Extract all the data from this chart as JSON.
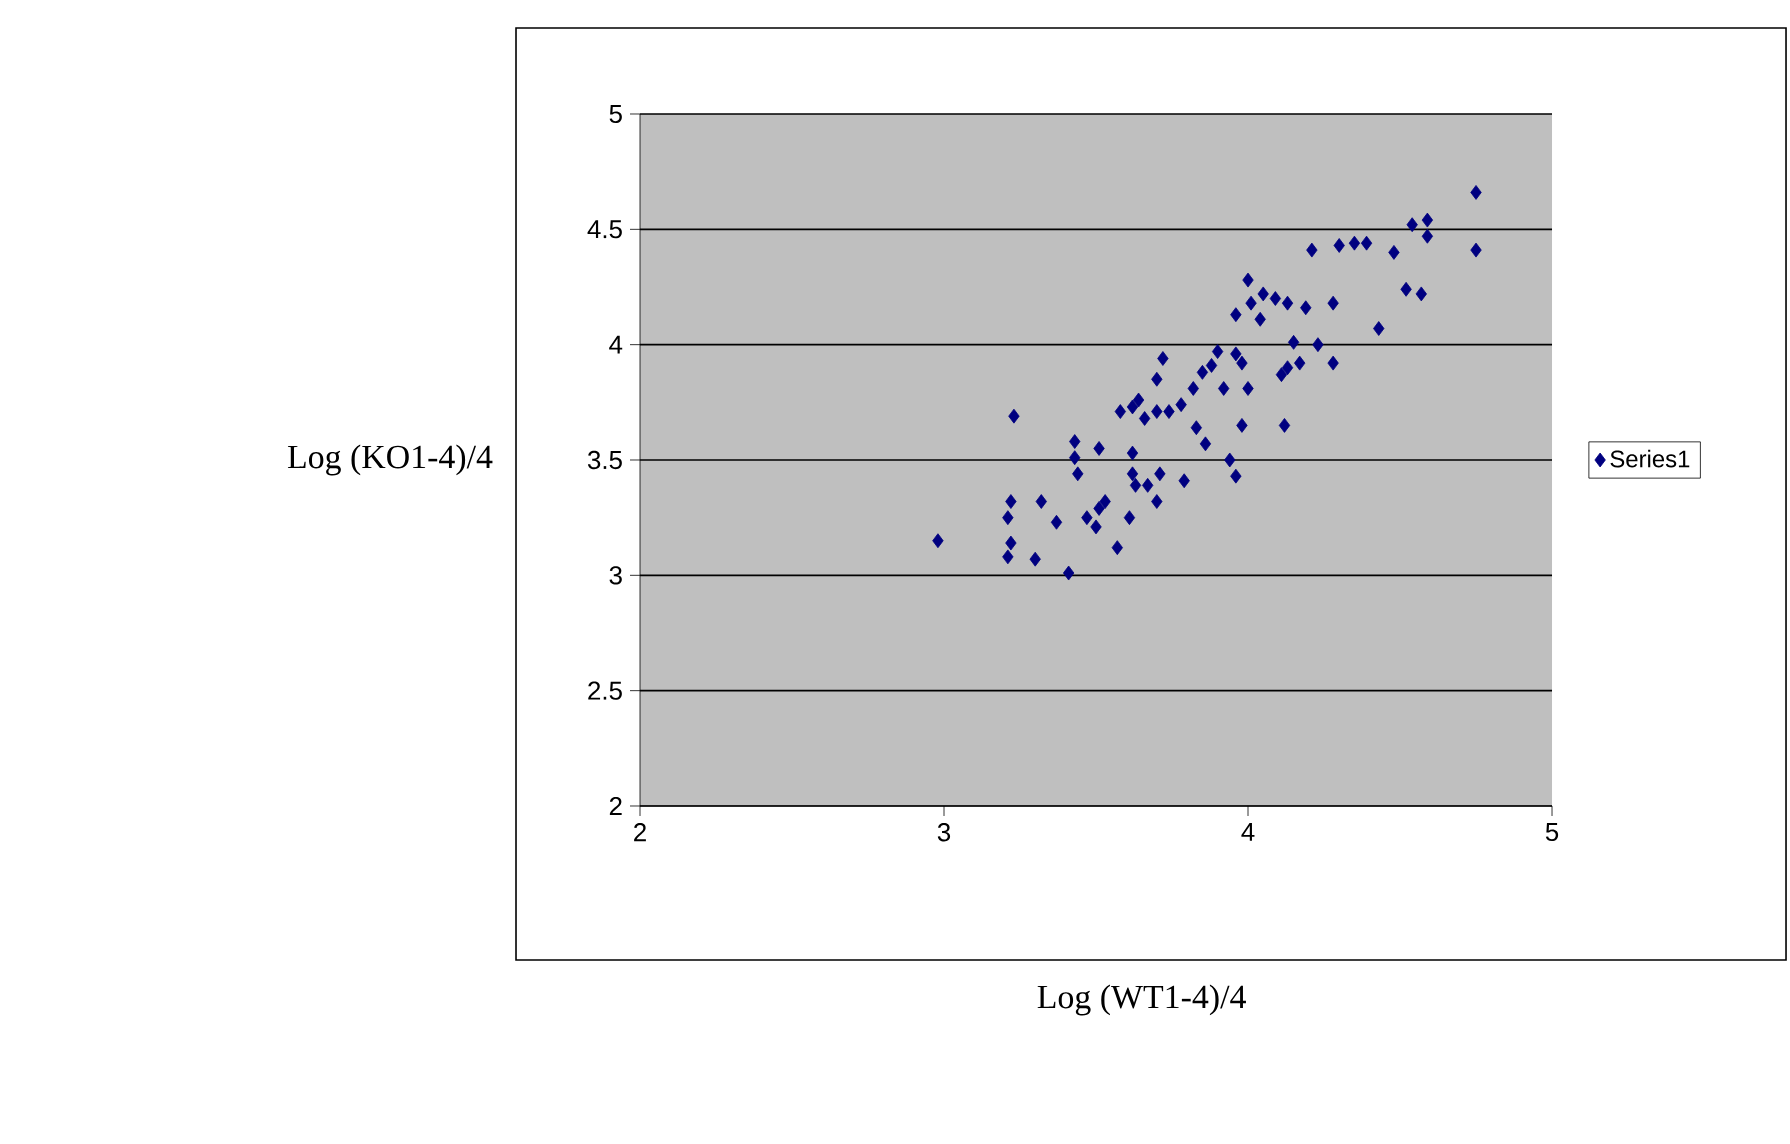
{
  "chart_data": {
    "type": "scatter",
    "xlabel": "Log (WT1-4)/4",
    "ylabel": "Log (KO1-4)/4",
    "xlim": [
      2,
      5
    ],
    "ylim": [
      2,
      5
    ],
    "xticks": [
      2,
      3,
      4,
      5
    ],
    "yticks": [
      2,
      2.5,
      3,
      3.5,
      4,
      4.5,
      5
    ],
    "grid": "y",
    "legend": "right",
    "marker": "diamond",
    "series": [
      {
        "name": "Series1",
        "color": "#000080",
        "x": [
          2.98,
          3.23,
          3.21,
          3.22,
          3.22,
          3.21,
          3.32,
          3.3,
          3.37,
          3.41,
          3.43,
          3.44,
          3.43,
          3.51,
          3.47,
          3.51,
          3.53,
          3.5,
          3.57,
          3.61,
          3.62,
          3.62,
          3.63,
          3.58,
          3.62,
          3.66,
          3.7,
          3.64,
          3.7,
          3.72,
          3.67,
          3.7,
          3.71,
          3.79,
          3.74,
          3.78,
          3.82,
          3.85,
          3.88,
          3.9,
          3.83,
          3.86,
          3.94,
          3.96,
          3.92,
          3.96,
          3.98,
          3.98,
          4.0,
          3.96,
          4.0,
          4.01,
          4.05,
          4.09,
          4.13,
          4.19,
          4.04,
          4.12,
          4.11,
          4.15,
          4.13,
          4.17,
          4.23,
          4.28,
          4.28,
          4.21,
          4.3,
          4.35,
          4.39,
          4.43,
          4.48,
          4.52,
          4.57,
          4.54,
          4.59,
          4.59,
          4.75,
          4.75
        ],
        "values": [
          3.15,
          3.69,
          3.08,
          3.14,
          3.32,
          3.25,
          3.32,
          3.07,
          3.23,
          3.01,
          3.51,
          3.44,
          3.58,
          3.55,
          3.25,
          3.29,
          3.32,
          3.21,
          3.12,
          3.25,
          3.53,
          3.44,
          3.39,
          3.71,
          3.73,
          3.68,
          3.71,
          3.76,
          3.85,
          3.94,
          3.39,
          3.32,
          3.44,
          3.41,
          3.71,
          3.74,
          3.81,
          3.88,
          3.91,
          3.97,
          3.64,
          3.57,
          3.5,
          3.43,
          3.81,
          3.96,
          3.92,
          3.65,
          3.81,
          4.13,
          4.28,
          4.18,
          4.22,
          4.2,
          4.18,
          4.16,
          4.11,
          3.65,
          3.87,
          4.01,
          3.9,
          3.92,
          4.0,
          3.92,
          4.18,
          4.41,
          4.43,
          4.44,
          4.44,
          4.07,
          4.4,
          4.24,
          4.22,
          4.52,
          4.54,
          4.47,
          4.66,
          4.41
        ]
      }
    ]
  }
}
